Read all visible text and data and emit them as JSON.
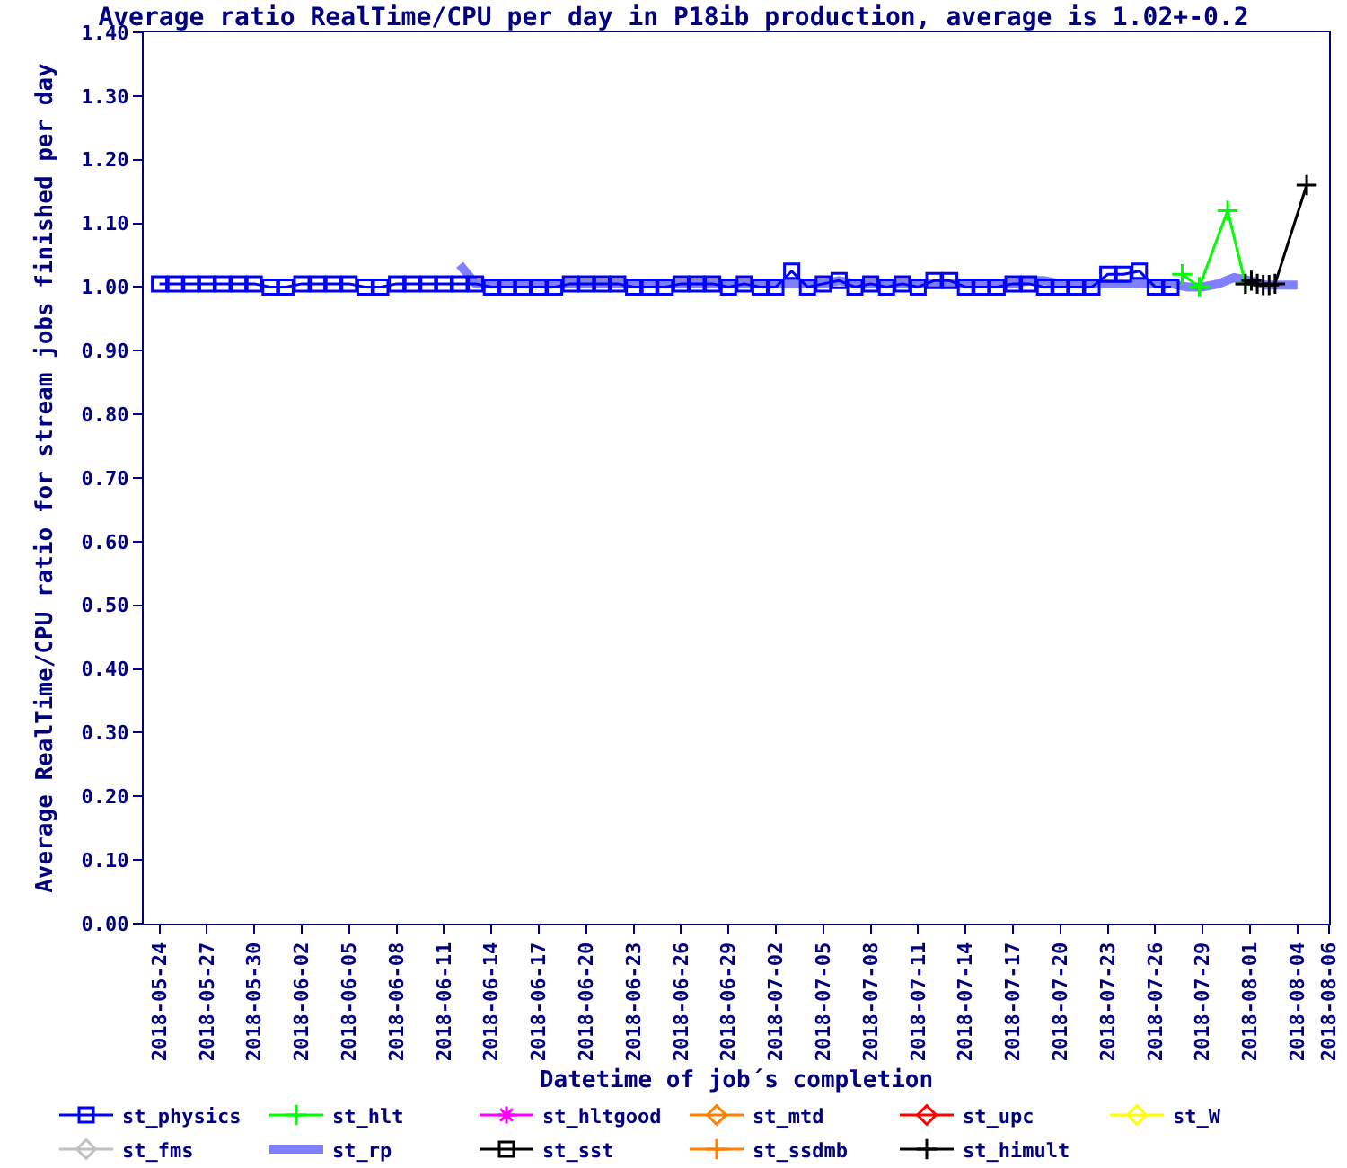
{
  "chart_data": {
    "type": "line",
    "title": "Average ratio RealTime/CPU per day in P18ib production, average is 1.02+-0.2",
    "xlabel": "Datetime of job´s completion",
    "ylabel": "Average RealTime/CPU ratio for stream jobs finished per day",
    "xlim": [
      "2018-05-23",
      "2018-08-06"
    ],
    "xticks": [
      "2018-05-24",
      "2018-05-27",
      "2018-05-30",
      "2018-06-02",
      "2018-06-05",
      "2018-06-08",
      "2018-06-11",
      "2018-06-14",
      "2018-06-17",
      "2018-06-20",
      "2018-06-23",
      "2018-06-26",
      "2018-06-29",
      "2018-07-02",
      "2018-07-05",
      "2018-07-08",
      "2018-07-11",
      "2018-07-14",
      "2018-07-17",
      "2018-07-20",
      "2018-07-23",
      "2018-07-26",
      "2018-07-29",
      "2018-08-01",
      "2018-08-04",
      "2018-08-06"
    ],
    "ylim": [
      0,
      1.4
    ],
    "yticks": [
      {
        "value": 0,
        "label": "0.00"
      },
      {
        "value": 0.1,
        "label": "0.10"
      },
      {
        "value": 0.2,
        "label": "0.20"
      },
      {
        "value": 0.3,
        "label": "0.30"
      },
      {
        "value": 0.4,
        "label": "0.40"
      },
      {
        "value": 0.5,
        "label": "0.50"
      },
      {
        "value": 0.6,
        "label": "0.60"
      },
      {
        "value": 0.7,
        "label": "0.70"
      },
      {
        "value": 0.8,
        "label": "0.80"
      },
      {
        "value": 0.9,
        "label": "0.90"
      },
      {
        "value": 1.0,
        "label": "1.00"
      },
      {
        "value": 1.1,
        "label": "1.10"
      },
      {
        "value": 1.2,
        "label": "1.20"
      },
      {
        "value": 1.3,
        "label": "1.30"
      },
      {
        "value": 1.4,
        "label": "1.40"
      }
    ],
    "grid": false,
    "legend": "bottom",
    "series": [
      {
        "name": "st_physics",
        "color": "#0000ff",
        "marker": "square",
        "x": [
          "2018-05-24",
          "2018-05-25",
          "2018-05-26",
          "2018-05-27",
          "2018-05-28",
          "2018-05-29",
          "2018-05-30",
          "2018-05-31",
          "2018-06-01",
          "2018-06-02",
          "2018-06-03",
          "2018-06-04",
          "2018-06-05",
          "2018-06-06",
          "2018-06-07",
          "2018-06-08",
          "2018-06-09",
          "2018-06-10",
          "2018-06-11",
          "2018-06-12",
          "2018-06-13",
          "2018-06-14",
          "2018-06-15",
          "2018-06-16",
          "2018-06-17",
          "2018-06-18",
          "2018-06-19",
          "2018-06-20",
          "2018-06-21",
          "2018-06-22",
          "2018-06-23",
          "2018-06-24",
          "2018-06-25",
          "2018-06-26",
          "2018-06-27",
          "2018-06-28",
          "2018-06-29",
          "2018-06-30",
          "2018-07-01",
          "2018-07-02",
          "2018-07-03",
          "2018-07-04",
          "2018-07-05",
          "2018-07-06",
          "2018-07-07",
          "2018-07-08",
          "2018-07-09",
          "2018-07-10",
          "2018-07-11",
          "2018-07-12",
          "2018-07-13",
          "2018-07-14",
          "2018-07-15",
          "2018-07-16",
          "2018-07-17",
          "2018-07-18",
          "2018-07-19",
          "2018-07-20",
          "2018-07-21",
          "2018-07-22",
          "2018-07-23",
          "2018-07-24",
          "2018-07-25",
          "2018-07-26",
          "2018-07-27"
        ],
        "values": [
          1.005,
          1.005,
          1.005,
          1.005,
          1.005,
          1.005,
          1.005,
          1.0,
          1.0,
          1.005,
          1.005,
          1.005,
          1.005,
          1.0,
          1.0,
          1.005,
          1.005,
          1.005,
          1.005,
          1.005,
          1.005,
          1.0,
          1.0,
          1.0,
          1.0,
          1.0,
          1.005,
          1.005,
          1.005,
          1.005,
          1.0,
          1.0,
          1.0,
          1.005,
          1.005,
          1.005,
          1.0,
          1.005,
          1.0,
          1.0,
          1.025,
          1.0,
          1.005,
          1.01,
          1.0,
          1.005,
          1.0,
          1.005,
          1.0,
          1.01,
          1.01,
          1.0,
          1.0,
          1.0,
          1.005,
          1.005,
          1.0,
          1.0,
          1.0,
          1.0,
          1.02,
          1.02,
          1.025,
          1.0,
          1.0
        ]
      },
      {
        "name": "st_hlt",
        "color": "#00ff00",
        "marker": "cross",
        "x": [
          "2018-07-27T17:00",
          "2018-07-28T19:00",
          "2018-07-30T14:00",
          "2018-07-31T17:00"
        ],
        "values": [
          1.02,
          1.0,
          1.12,
          1.005
        ]
      },
      {
        "name": "st_hltgood",
        "color": "#ff00ff",
        "marker": "star"
      },
      {
        "name": "st_mtd",
        "color": "#ff8000",
        "marker": "diamond"
      },
      {
        "name": "st_upc",
        "color": "#ff0000",
        "marker": "diamond"
      },
      {
        "name": "st_W",
        "color": "#ffff00",
        "marker": "diamond"
      },
      {
        "name": "st_fms",
        "color": "#c0c0c0",
        "marker": "diamond"
      },
      {
        "name": "st_rp",
        "color": "#8080ff",
        "marker": "none",
        "x": [
          "2018-06-12",
          "2018-06-13",
          "2018-06-14",
          "2018-06-15",
          "2018-06-16",
          "2018-06-17",
          "2018-06-18",
          "2018-06-19",
          "2018-06-20",
          "2018-06-21",
          "2018-06-22",
          "2018-06-23",
          "2018-06-24",
          "2018-06-25",
          "2018-06-26",
          "2018-06-27",
          "2018-06-28",
          "2018-06-29",
          "2018-06-30",
          "2018-07-01",
          "2018-07-02",
          "2018-07-03",
          "2018-07-04",
          "2018-07-05",
          "2018-07-06",
          "2018-07-07",
          "2018-07-08",
          "2018-07-09",
          "2018-07-10",
          "2018-07-11",
          "2018-07-12",
          "2018-07-13",
          "2018-07-14",
          "2018-07-15",
          "2018-07-16",
          "2018-07-17",
          "2018-07-18",
          "2018-07-19",
          "2018-07-20",
          "2018-07-21",
          "2018-07-22",
          "2018-07-23",
          "2018-07-24",
          "2018-07-25",
          "2018-07-26",
          "2018-07-27",
          "2018-07-28",
          "2018-07-29",
          "2018-07-30",
          "2018-07-31",
          "2018-08-01",
          "2018-08-02",
          "2018-08-03",
          "2018-08-04"
        ],
        "values": [
          1.035,
          1.005,
          1.005,
          1.005,
          1.005,
          1.005,
          1.005,
          1.005,
          1.005,
          1.005,
          1.005,
          1.005,
          1.005,
          1.005,
          1.005,
          1.005,
          1.005,
          1.005,
          1.005,
          1.005,
          1.005,
          1.005,
          1.005,
          1.005,
          1.01,
          1.005,
          1.005,
          1.005,
          1.005,
          1.005,
          1.005,
          1.005,
          1.005,
          1.005,
          1.005,
          1.005,
          1.01,
          1.01,
          1.005,
          1.005,
          1.005,
          1.005,
          1.005,
          1.005,
          1.005,
          1.005,
          1.0,
          1.0,
          1.005,
          1.015,
          1.01,
          1.003,
          1.003,
          1.003
        ]
      },
      {
        "name": "st_sst",
        "color": "#000000",
        "marker": "square"
      },
      {
        "name": "st_ssdmb",
        "color": "#ff8000",
        "marker": "cross"
      },
      {
        "name": "st_himult",
        "color": "#000000",
        "marker": "cross",
        "x": [
          "2018-07-31T17:00",
          "2018-08-01T02:00",
          "2018-08-01T11:00",
          "2018-08-01T20:00",
          "2018-08-02T05:00",
          "2018-08-02T14:00",
          "2018-08-04T14:00"
        ],
        "values": [
          1.005,
          1.01,
          1.005,
          1.003,
          1.003,
          1.005,
          1.16
        ]
      }
    ]
  }
}
